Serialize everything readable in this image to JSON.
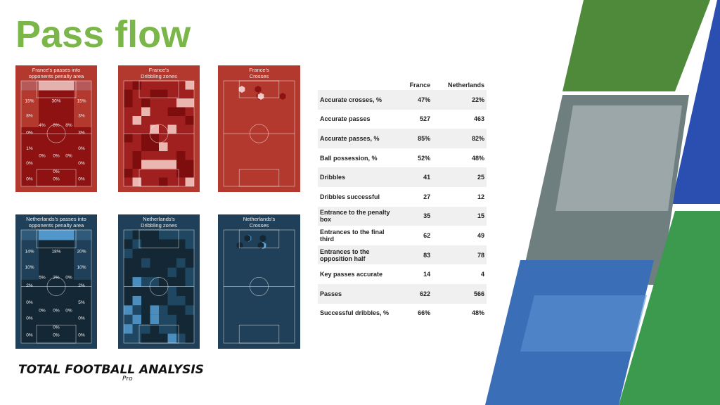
{
  "title": "Pass flow",
  "panels": [
    {
      "title": [
        "France's passes into",
        "opponents penalty area"
      ],
      "labels": [
        "15%",
        "30%",
        "15%",
        "8%",
        "3%",
        "4%",
        "8%",
        "8%",
        "0%",
        "3%",
        "1%",
        "0%",
        "0%",
        "0%",
        "0%",
        "0%",
        "0%",
        "0%",
        "0%",
        "0%",
        "0%"
      ]
    },
    {
      "title": [
        "France's",
        "Dribbling zones"
      ]
    },
    {
      "title": [
        "France's",
        "Crosses"
      ]
    },
    {
      "title": [
        "Netherlands's passes into",
        "opponents penalty area"
      ],
      "labels": [
        "14%",
        "18%",
        "20%",
        "10%",
        "10%",
        "5%",
        "2%",
        "0%",
        "2%",
        "2%",
        "0%",
        "5%",
        "0%",
        "0%",
        "0%",
        "0%",
        "0%",
        "0%",
        "0%",
        "0%",
        "0%"
      ]
    },
    {
      "title": [
        "Netherlands's",
        "Dribbling zones"
      ]
    },
    {
      "title": [
        "Netherlands's",
        "Crosses"
      ]
    }
  ],
  "table": {
    "header": [
      "France",
      "Netherlands"
    ],
    "rows": [
      [
        "Accurate crosses, %",
        "47%",
        "22%"
      ],
      [
        "Accurate passes",
        "527",
        "463"
      ],
      [
        "Accurate passes, %",
        "85%",
        "82%"
      ],
      [
        "Ball possession, %",
        "52%",
        "48%"
      ],
      [
        "Dribbles",
        "41",
        "25"
      ],
      [
        "Dribbles successful",
        "27",
        "12"
      ],
      [
        "Entrance to the penalty box",
        "35",
        "15"
      ],
      [
        "Entrances to the final third",
        "62",
        "49"
      ],
      [
        "Entrances to the opposition half",
        "83",
        "78"
      ],
      [
        "Key passes accurate",
        "14",
        "4"
      ],
      [
        "Passes",
        "622",
        "566"
      ],
      [
        "Successful dribbles, %",
        "66%",
        "48%"
      ]
    ]
  },
  "logo": {
    "name": "TOTAL FOOTBALL ANALYSIS",
    "sub": "Pro"
  }
}
